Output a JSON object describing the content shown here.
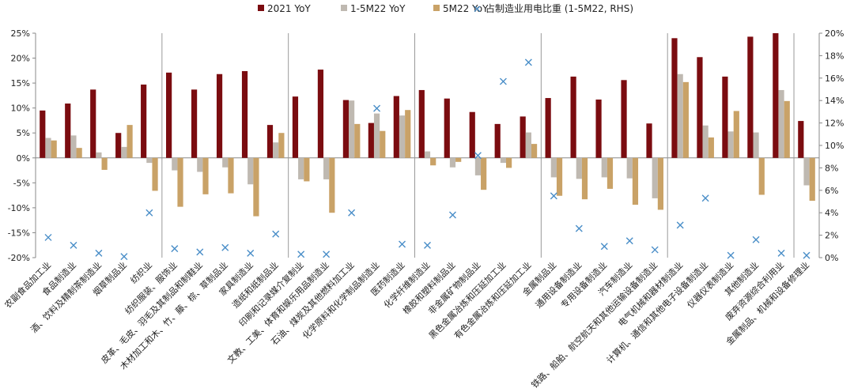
{
  "chart_data": {
    "type": "bar",
    "title": "",
    "xlabel": "",
    "ylabel": "",
    "ylim": [
      -20,
      25
    ],
    "y2lim": [
      0,
      20
    ],
    "y_ticks": [
      "25%",
      "20%",
      "15%",
      "10%",
      "5%",
      "0%",
      "-5%",
      "-10%",
      "-15%",
      "-20%"
    ],
    "y2_ticks": [
      "20%",
      "18%",
      "16%",
      "14%",
      "12%",
      "10%",
      "8%",
      "6%",
      "4%",
      "2%",
      "0%"
    ],
    "colors": {
      "s2021": "#7b0c10",
      "s1_5m": "#bfb9b1",
      "s5m": "#c9a267",
      "rhs": "#4a8ec8"
    },
    "categories": [
      "农副食品加工业",
      "食品制造业",
      "酒、饮料及精制茶制造业",
      "烟草制品业",
      "纺织业",
      "纺织服装、服饰业",
      "皮革、毛皮、羽毛及其制品和制鞋业",
      "木材加工和木、竹、藤、棕、草制品业",
      "家具制造业",
      "造纸和纸制品业",
      "印刷和记录媒介复制业",
      "文教、工美、体育和娱乐用品制造业",
      "石油、煤炭及其他燃料加工业",
      "化学原料和化学制品制造业",
      "医药制造业",
      "化学纤维制造业",
      "橡胶和塑料制品业",
      "非金属矿物制品业",
      "黑色金属冶炼和压延加工业",
      "有色金属冶炼和压延加工业",
      "金属制品业",
      "通用设备制造业",
      "专用设备制造业",
      "汽车制造业",
      "铁路、船舶、航空航天和其他运输设备制造业",
      "电气机械和器材制造业",
      "计算机、通信和其他电子设备制造业",
      "仪器仪表制造业",
      "其他制造业",
      "废弃资源综合利用业",
      "金属制品、机械和设备修理业"
    ],
    "group_ends": [
      4,
      9,
      14,
      19,
      24,
      29
    ],
    "series": [
      {
        "name": "2021 YoY",
        "axis": "left",
        "values": [
          9.5,
          10.9,
          13.7,
          5.0,
          14.7,
          17.1,
          13.7,
          16.8,
          17.4,
          6.6,
          12.3,
          17.7,
          11.6,
          7.0,
          12.4,
          13.6,
          11.9,
          9.2,
          6.8,
          8.3,
          12.0,
          16.3,
          11.7,
          15.6,
          6.9,
          24.0,
          20.2,
          16.3,
          24.3,
          25.0,
          7.4
        ]
      },
      {
        "name": "1-5M22 YoY",
        "axis": "left",
        "values": [
          4.0,
          4.5,
          1.1,
          2.2,
          -1.0,
          -2.5,
          -2.8,
          -1.9,
          -5.3,
          3.1,
          -4.3,
          -4.3,
          11.5,
          8.9,
          8.5,
          1.3,
          -1.9,
          -3.5,
          -1.0,
          5.1,
          -3.9,
          -4.2,
          -3.9,
          -4.1,
          -8.1,
          16.8,
          6.5,
          5.3,
          5.1,
          13.6,
          -5.5
        ]
      },
      {
        "name": "5M22 YoY",
        "axis": "left",
        "values": [
          3.5,
          2.0,
          -2.4,
          6.6,
          -6.6,
          -9.8,
          -7.3,
          -7.1,
          -11.7,
          5.0,
          -4.7,
          -11.0,
          6.8,
          5.4,
          9.6,
          -1.5,
          -0.8,
          -6.4,
          -2.0,
          2.8,
          -7.6,
          -8.3,
          -6.2,
          -9.4,
          -10.4,
          15.2,
          4.1,
          9.4,
          -7.4,
          11.4,
          -8.6
        ]
      },
      {
        "name": "占制造业用电比重 (1-5M22, RHS)",
        "axis": "right",
        "values": [
          1.8,
          1.1,
          0.4,
          0.1,
          4.0,
          0.8,
          0.5,
          0.9,
          0.4,
          2.1,
          0.3,
          0.3,
          4.0,
          13.3,
          1.2,
          1.1,
          3.8,
          9.1,
          15.7,
          17.4,
          5.5,
          2.6,
          1.0,
          1.5,
          0.7,
          2.9,
          5.3,
          0.2,
          1.6,
          0.4,
          0.2
        ]
      }
    ],
    "legend": [
      "2021 YoY",
      "1-5M22 YoY",
      "5M22 YoY",
      "占制造业用电比重 (1-5M22, RHS)"
    ],
    "legend_position": "top"
  }
}
